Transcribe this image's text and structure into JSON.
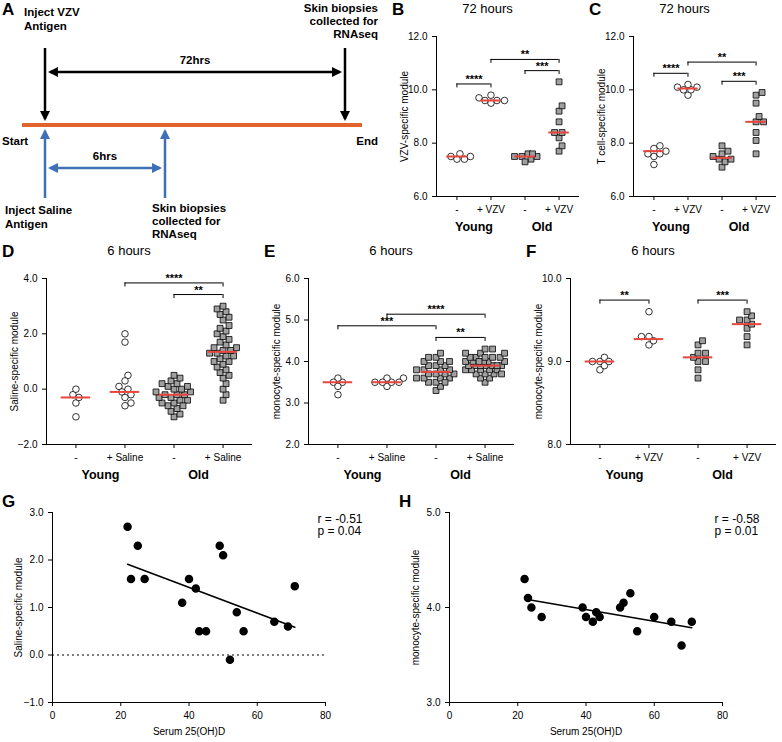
{
  "diagram": {
    "panel": "A",
    "start": "Start",
    "end": "End",
    "top_left": [
      "Inject VZV",
      "Antigen"
    ],
    "top_right": [
      "Skin biopsies",
      "collected for",
      "RNAseq"
    ],
    "top_interval": "72hrs",
    "bottom_left": [
      "Inject Saline",
      "Antigen"
    ],
    "bottom_right": [
      "Skin biopsies",
      "collected for",
      "RNAseq"
    ],
    "bottom_interval": "6hrs"
  },
  "chart_data": [
    {
      "type": "dot",
      "panel": "B",
      "title": "72 hours",
      "ylabel": "VZV-specific module",
      "ylim": [
        6,
        12
      ],
      "yticks": [
        6,
        8,
        10,
        12
      ],
      "categories": [
        "-",
        "+ VZV",
        "-",
        "+ VZV"
      ],
      "series": [
        {
          "name": "Young",
          "color": "#ffffff",
          "marker": "circle",
          "values": [
            [
              7.4,
              7.5,
              7.6,
              7.5,
              7.4
            ],
            [
              9.5,
              9.6,
              9.7,
              9.6,
              9.8,
              9.6
            ]
          ]
        },
        {
          "name": "Old",
          "color": "#a0a0a0",
          "marker": "square",
          "values": [
            [
              7.4,
              7.5,
              7.6,
              7.5,
              7.5,
              7.3,
              7.6
            ],
            [
              7.7,
              7.9,
              8.2,
              8.4,
              8.4,
              8.8,
              9.2,
              9.4,
              10.3
            ]
          ]
        }
      ],
      "medians": {
        "color": "#e8453c",
        "values": [
          7.5,
          9.6,
          7.5,
          8.4
        ]
      },
      "significance": [
        {
          "from": 0,
          "to": 1,
          "label": "****"
        },
        {
          "from": 2,
          "to": 3,
          "label": "***"
        },
        {
          "from": 1,
          "to": 3,
          "label": "**"
        }
      ]
    },
    {
      "type": "dot",
      "panel": "C",
      "title": "72 hours",
      "ylabel": "T cell-specific module",
      "ylim": [
        6,
        12
      ],
      "yticks": [
        6,
        8,
        10,
        12
      ],
      "categories": [
        "-",
        "+ VZV",
        "-",
        "+ VZV"
      ],
      "series": [
        {
          "name": "Young",
          "color": "#ffffff",
          "marker": "circle",
          "values": [
            [
              7.2,
              7.5,
              7.6,
              7.7,
              7.8,
              7.9,
              7.6
            ],
            [
              9.8,
              10.0,
              10.1,
              10.2,
              10.1,
              10.0
            ]
          ]
        },
        {
          "name": "Old",
          "color": "#a0a0a0",
          "marker": "square",
          "values": [
            [
              7.1,
              7.3,
              7.4,
              7.4,
              7.5,
              7.6,
              7.7,
              7.9
            ],
            [
              7.6,
              8.1,
              8.4,
              8.8,
              8.8,
              9.0,
              9.5,
              9.8,
              9.9
            ]
          ]
        }
      ],
      "medians": {
        "color": "#e8453c",
        "values": [
          7.7,
          10.05,
          7.45,
          8.8
        ]
      },
      "significance": [
        {
          "from": 0,
          "to": 1,
          "label": "****"
        },
        {
          "from": 2,
          "to": 3,
          "label": "***"
        },
        {
          "from": 1,
          "to": 3,
          "label": "**"
        }
      ]
    },
    {
      "type": "dot",
      "panel": "D",
      "title": "6 hours",
      "ylabel": "Saline-specific module",
      "ylim": [
        -2,
        4
      ],
      "yticks": [
        -2,
        0,
        2,
        4
      ],
      "categories": [
        "-",
        "+ Saline",
        "-",
        "+ Saline"
      ],
      "series": [
        {
          "name": "Young",
          "color": "#ffffff",
          "marker": "circle",
          "values": [
            [
              -1.0,
              -0.5,
              -0.3,
              -0.2,
              0.0
            ],
            [
              2.0,
              1.7,
              0.5,
              0.3,
              0.1,
              0.0,
              -0.1,
              -0.2,
              -0.3,
              -0.5,
              -0.6
            ]
          ]
        },
        {
          "name": "Old",
          "color": "#a0a0a0",
          "marker": "square",
          "values": [
            [
              -1.0,
              -0.9,
              -0.8,
              -0.7,
              -0.6,
              -0.5,
              -0.5,
              -0.4,
              -0.4,
              -0.3,
              -0.3,
              -0.2,
              -0.2,
              -0.2,
              -0.1,
              -0.1,
              0.0,
              0.0,
              0.1,
              0.1,
              0.2,
              0.2,
              0.3,
              0.4,
              0.5,
              -0.6
            ],
            [
              -0.4,
              -0.2,
              0.0,
              0.2,
              0.4,
              0.5,
              0.6,
              0.7,
              0.8,
              0.9,
              1.0,
              1.0,
              1.1,
              1.2,
              1.2,
              1.3,
              1.3,
              1.4,
              1.4,
              1.5,
              1.5,
              1.6,
              1.7,
              1.8,
              1.9,
              2.0,
              2.1,
              2.2,
              2.3,
              2.5,
              2.6,
              2.7,
              2.8,
              2.9,
              3.0
            ]
          ]
        }
      ],
      "medians": {
        "color": "#e8453c",
        "values": [
          -0.3,
          -0.1,
          -0.2,
          1.35
        ]
      },
      "significance": [
        {
          "from": 2,
          "to": 3,
          "label": "**"
        },
        {
          "from": 1,
          "to": 3,
          "label": "****"
        }
      ]
    },
    {
      "type": "dot",
      "panel": "E",
      "title": "6 hours",
      "ylabel": "monocyte-specific module",
      "ylim": [
        2,
        6
      ],
      "yticks": [
        2,
        3,
        4,
        5,
        6
      ],
      "categories": [
        "-",
        "+ Saline",
        "-",
        "+ Saline"
      ],
      "series": [
        {
          "name": "Young",
          "color": "#ffffff",
          "marker": "circle",
          "values": [
            [
              3.2,
              3.5,
              3.6,
              3.5,
              3.4
            ],
            [
              3.4,
              3.5,
              3.6,
              3.5,
              3.6,
              3.5,
              3.5
            ]
          ]
        },
        {
          "name": "Old",
          "color": "#a0a0a0",
          "marker": "square",
          "values": [
            [
              3.3,
              3.4,
              3.5,
              3.5,
              3.6,
              3.6,
              3.6,
              3.7,
              3.7,
              3.7,
              3.7,
              3.8,
              3.8,
              3.8,
              3.8,
              3.9,
              3.9,
              3.9,
              4.0,
              4.0,
              4.0,
              4.1,
              4.1,
              4.2,
              3.6,
              3.5
            ],
            [
              3.5,
              3.6,
              3.6,
              3.7,
              3.7,
              3.7,
              3.8,
              3.8,
              3.8,
              3.8,
              3.9,
              3.9,
              3.9,
              3.9,
              3.9,
              3.9,
              4.0,
              4.0,
              4.0,
              4.0,
              4.0,
              4.1,
              4.1,
              4.1,
              4.1,
              4.2,
              4.2,
              4.2,
              4.3,
              4.3,
              3.8,
              3.9,
              4.0,
              3.7,
              4.1
            ]
          ]
        }
      ],
      "medians": {
        "color": "#e8453c",
        "values": [
          3.5,
          3.5,
          3.75,
          3.9
        ]
      },
      "significance": [
        {
          "from": 2,
          "to": 3,
          "label": "**"
        },
        {
          "from": 0,
          "to": 2,
          "label": "***"
        },
        {
          "from": 1,
          "to": 3,
          "label": "****"
        }
      ]
    },
    {
      "type": "dot",
      "panel": "F",
      "title": "6 hours",
      "ylabel": "monocyte-specific module",
      "ylim": [
        8,
        10
      ],
      "yticks": [
        8,
        9,
        10
      ],
      "categories": [
        "-",
        "+ VZV",
        "-",
        "+ VZV"
      ],
      "series": [
        {
          "name": "Young",
          "color": "#ffffff",
          "marker": "circle",
          "values": [
            [
              8.9,
              9.0,
              9.0,
              8.95,
              9.05,
              9.0
            ],
            [
              9.2,
              9.25,
              9.3,
              9.3,
              9.6
            ]
          ]
        },
        {
          "name": "Old",
          "color": "#a0a0a0",
          "marker": "square",
          "values": [
            [
              8.8,
              8.9,
              9.0,
              9.0,
              9.05,
              9.1,
              9.1,
              9.2,
              9.25
            ],
            [
              9.2,
              9.3,
              9.4,
              9.45,
              9.5,
              9.5,
              9.55,
              9.6
            ]
          ]
        }
      ],
      "medians": {
        "color": "#e8453c",
        "values": [
          9.0,
          9.27,
          9.05,
          9.45
        ]
      },
      "significance": [
        {
          "from": 0,
          "to": 1,
          "label": "**"
        },
        {
          "from": 2,
          "to": 3,
          "label": "***"
        }
      ]
    },
    {
      "type": "regression",
      "panel": "G",
      "xlabel": "Serum 25(OH)D",
      "ylabel": "Saline-specific module",
      "xlim": [
        0,
        80
      ],
      "xticks": [
        0,
        20,
        40,
        60,
        80
      ],
      "ylim": [
        -1,
        3
      ],
      "yticks": [
        -1,
        0,
        1,
        2,
        3
      ],
      "x": [
        22,
        23,
        25,
        27,
        38,
        40,
        42,
        43,
        45,
        49,
        50,
        52,
        54,
        56,
        65,
        69,
        71
      ],
      "values": [
        2.7,
        1.6,
        2.3,
        1.6,
        1.1,
        1.6,
        1.4,
        0.5,
        0.5,
        2.3,
        2.1,
        -0.1,
        0.9,
        0.5,
        0.7,
        0.6,
        1.45
      ],
      "color": "#000000",
      "marker": "circle",
      "reference_line": 0,
      "annotations": [
        "r = -0.51",
        "p = 0.04"
      ]
    },
    {
      "type": "regression",
      "panel": "H",
      "xlabel": "Serum 25(OH)D",
      "ylabel": "monocyte-specific module",
      "xlim": [
        0,
        80
      ],
      "xticks": [
        0,
        20,
        40,
        60,
        80
      ],
      "ylim": [
        3,
        5
      ],
      "yticks": [
        3,
        4,
        5
      ],
      "x": [
        22,
        23,
        24,
        27,
        39,
        40,
        42,
        43,
        44,
        50,
        51,
        53,
        55,
        60,
        65,
        68,
        71
      ],
      "values": [
        4.3,
        4.1,
        4.0,
        3.9,
        4.0,
        3.9,
        3.85,
        3.95,
        3.9,
        4.0,
        4.05,
        4.15,
        3.75,
        3.9,
        3.85,
        3.6,
        3.85
      ],
      "color": "#000000",
      "marker": "circle",
      "annotations": [
        "r = -0.58",
        "p = 0.01"
      ]
    }
  ]
}
